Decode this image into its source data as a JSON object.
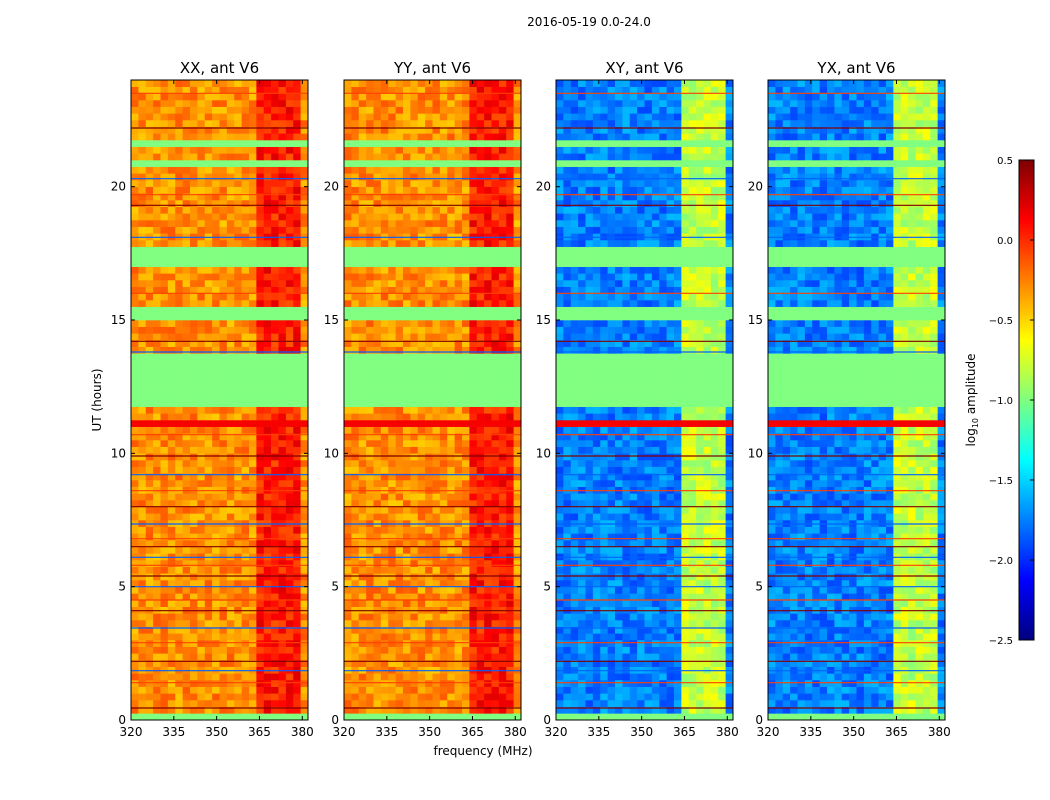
{
  "chart_data": {
    "type": "heatmap",
    "suptitle": "2016-05-19 0.0-24.0",
    "xlabel": "frequency (MHz)",
    "ylabel": "UT (hours)",
    "xlim": [
      320,
      382
    ],
    "ylim": [
      0,
      24
    ],
    "xticks": [
      320,
      335,
      350,
      365,
      380
    ],
    "yticks": [
      0,
      5,
      10,
      15,
      20
    ],
    "colorbar": {
      "label": "log10 amplitude",
      "label_main": "log",
      "label_sub": "10",
      "label_rest": " amplitude",
      "vmin": -2.5,
      "vmax": 0.5,
      "ticks": [
        -2.5,
        -2.0,
        -1.5,
        -1.0,
        -0.5,
        0.0,
        0.5
      ],
      "tick_labels": [
        "−2.5",
        "−2.0",
        "−1.5",
        "−1.0",
        "−0.5",
        "0.0",
        "0.5"
      ],
      "colormap": "jet"
    },
    "panels": [
      {
        "title": "XX, ant V6",
        "polarization": "XX",
        "base_level": -0.3,
        "band_level": 0.05
      },
      {
        "title": "YY, ant V6",
        "polarization": "YY",
        "base_level": -0.3,
        "band_level": 0.05
      },
      {
        "title": "XY, ant V6",
        "polarization": "XY",
        "base_level": -1.75,
        "band_level": -0.8
      },
      {
        "title": "YX, ant V6",
        "polarization": "YX",
        "base_level": -1.75,
        "band_level": -0.8
      }
    ],
    "flagged_value": -1.0,
    "flagged_ut_ranges": [
      [
        11.75,
        13.6
      ],
      [
        15.0,
        15.5
      ],
      [
        16.8,
        17.6
      ],
      [
        21.3,
        21.6
      ],
      [
        20.6,
        21.0
      ],
      [
        0,
        0.25
      ]
    ],
    "rfi_ut_rows": [
      0.45,
      1.4,
      1.85,
      2.2,
      2.9,
      3.45,
      4.1,
      4.5,
      5.0,
      5.4,
      5.8,
      6.1,
      6.5,
      6.8,
      7.35,
      8.0,
      8.6,
      9.2,
      9.9,
      10.7,
      13.8,
      14.2,
      16.0,
      18.1,
      19.3,
      19.7,
      20.3,
      22.2,
      23.5
    ],
    "saturated_ut_ranges": [
      [
        10.85,
        11.1
      ],
      [
        13.45,
        13.6
      ],
      [
        21.05,
        21.25
      ]
    ],
    "high_band_mhz": [
      363,
      378
    ]
  }
}
